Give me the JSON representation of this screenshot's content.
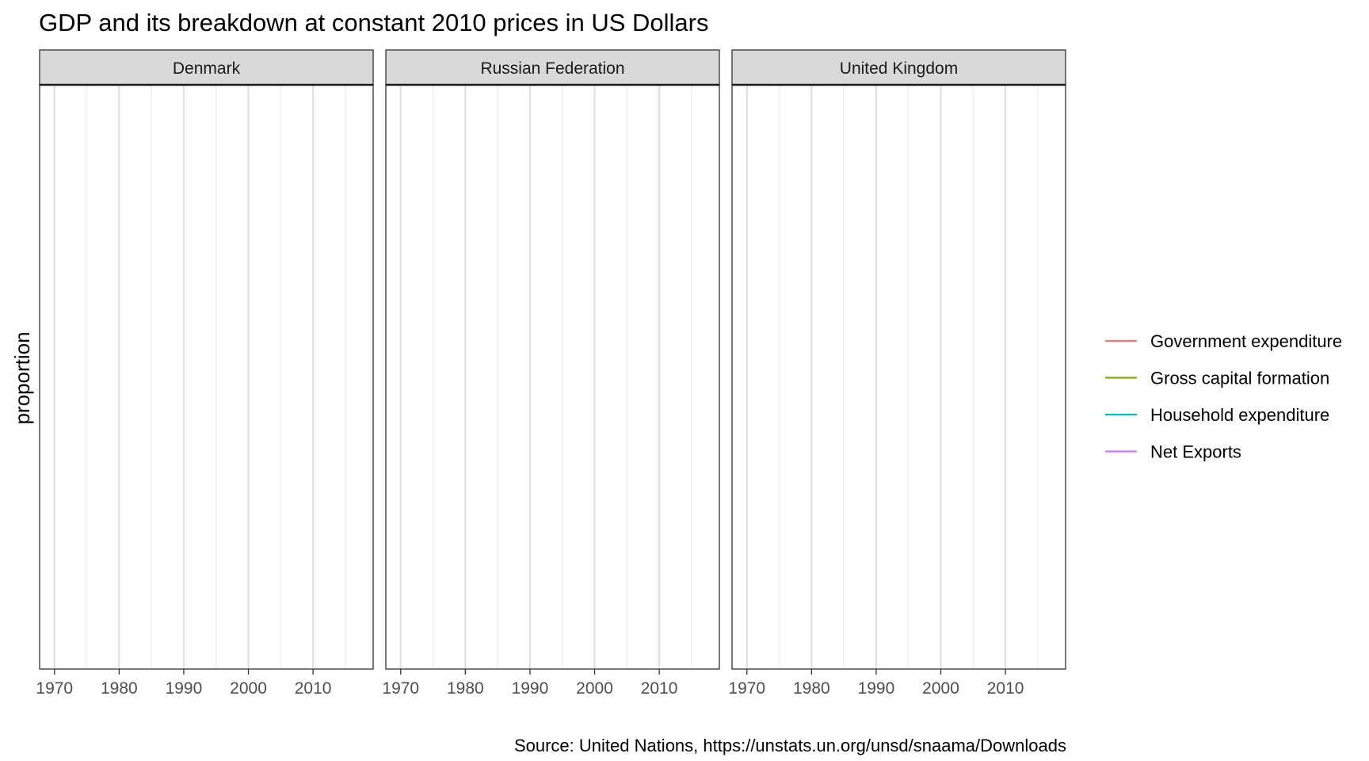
{
  "chart_data": {
    "type": "line",
    "title": "GDP and its breakdown at constant 2010 prices in US Dollars",
    "xlabel": "",
    "ylabel": "proportion",
    "caption": "Source: United Nations, https://unstats.un.org/unsd/snaama/Downloads",
    "facets": [
      "Denmark",
      "Russian Federation",
      "United Kingdom"
    ],
    "xlim": [
      1967.7,
      2019.3
    ],
    "x_ticks": [
      1970,
      1980,
      1990,
      2000,
      2010
    ],
    "x_minor_ticks": [
      1975,
      1985,
      1995,
      2005,
      2015
    ],
    "grid": true,
    "legend_position": "right",
    "series": [
      {
        "name": "Government expenditure",
        "color": "#F8766D",
        "values": []
      },
      {
        "name": "Gross capital formation",
        "color": "#7CAE00",
        "values": []
      },
      {
        "name": "Household expenditure",
        "color": "#00BFC4",
        "values": []
      },
      {
        "name": "Net Exports",
        "color": "#C77CFF",
        "values": []
      }
    ]
  }
}
